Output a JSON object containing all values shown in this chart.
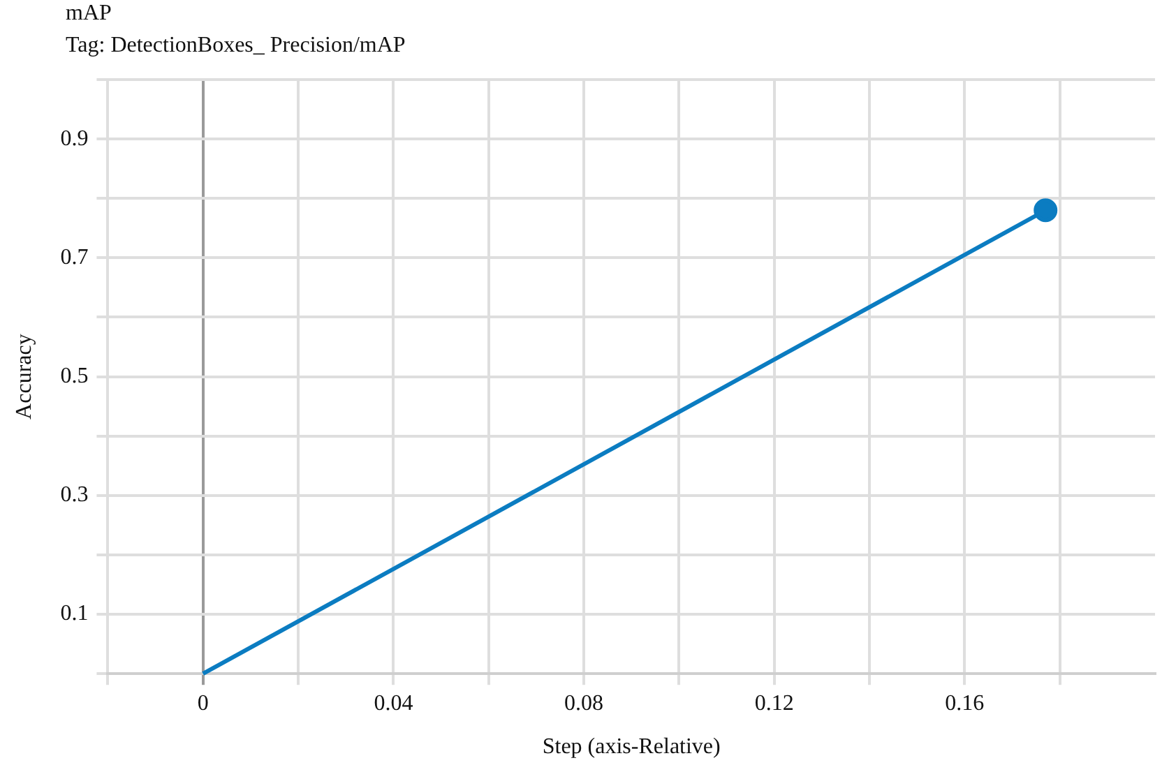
{
  "chart_data": {
    "type": "line",
    "title": "mAP",
    "subtitle": "Tag: DetectionBoxes_ Precision/mAP",
    "xlabel": "Step (axis-Relative)",
    "ylabel": "Accuracy",
    "x": [
      0,
      0.177
    ],
    "series": [
      {
        "color": "#0b7cc1",
        "values": [
          0,
          0.78
        ]
      }
    ],
    "xlim": [
      -0.02,
      0.2
    ],
    "xticks": [
      {
        "value": -0.02,
        "label": null
      },
      0,
      {
        "value": 0.02,
        "label": null
      },
      0.04,
      {
        "value": 0.06,
        "label": null
      },
      0.08,
      {
        "value": 0.1,
        "label": null
      },
      0.12,
      {
        "value": 0.14,
        "label": null
      },
      0.16,
      {
        "value": 0.18,
        "label": null
      }
    ],
    "ylim": [
      0,
      1
    ],
    "yticks": [
      {
        "value": 0,
        "label": null
      },
      0.1,
      {
        "value": 0.2,
        "label": null
      },
      0.3,
      {
        "value": 0.4,
        "label": null
      },
      0.5,
      {
        "value": 0.6,
        "label": null
      },
      0.7,
      {
        "value": 0.8,
        "label": null
      },
      0.9,
      {
        "value": 1,
        "label": null
      }
    ],
    "grid": true,
    "legend": false,
    "marker": "circle",
    "line_style": "solid"
  }
}
